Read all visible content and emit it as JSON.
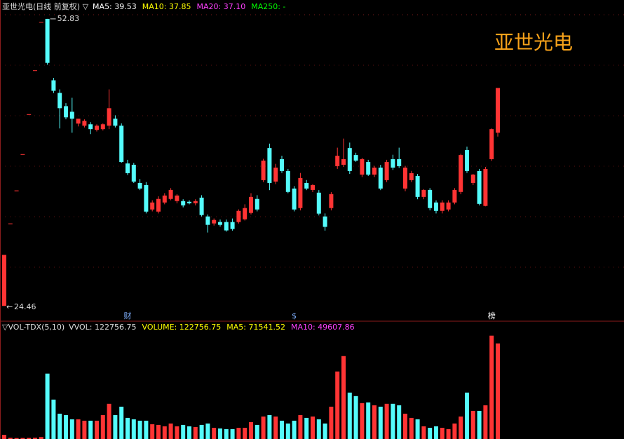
{
  "chart_data": [
    {
      "type": "candlestick",
      "title": "亚世光电(日线 前复权) ▽",
      "title_color": "#dddddd",
      "indicators": [
        {
          "text": "MA5: 39.53",
          "color": "#ffffff"
        },
        {
          "text": "MA10: 37.85",
          "color": "#ffff00"
        },
        {
          "text": "MA20: 37.10",
          "color": "#ff40ff"
        },
        {
          "text": "MA250: -",
          "color": "#00ff00"
        }
      ],
      "watermark": "亚世光电",
      "watermark_color": "#f7a21a",
      "high_label": 52.83,
      "low_label": 24.46,
      "ylim": [
        23.85,
        53.31
      ],
      "up_color": "#ff3434",
      "down_color": "#54fcfc",
      "events": [
        null,
        null,
        null,
        null,
        null,
        null,
        null,
        null,
        null,
        null,
        null,
        null,
        null,
        null,
        null,
        null,
        null,
        null,
        null,
        null,
        "财",
        null,
        null,
        null,
        null,
        null,
        null,
        null,
        null,
        null,
        null,
        null,
        null,
        null,
        null,
        null,
        null,
        null,
        null,
        null,
        null,
        null,
        null,
        null,
        null,
        null,
        null,
        "$",
        null,
        null,
        null,
        null,
        null,
        null,
        null,
        null,
        null,
        null,
        null,
        null,
        null,
        null,
        null,
        null,
        null,
        null,
        null,
        null,
        null,
        null,
        null,
        null,
        null,
        null,
        null,
        null,
        null,
        null,
        null,
        "榜",
        null
      ],
      "open": [
        24.46,
        32.61,
        35.87,
        39.46,
        43.41,
        47.75,
        52.53,
        52.83,
        46.76,
        45.51,
        44.2,
        43.65,
        42.48,
        42.27,
        42.41,
        41.86,
        41.93,
        42.27,
        42.96,
        42.27,
        38.54,
        38.41,
        36.61,
        36.4,
        33.99,
        33.78,
        34.68,
        35.03,
        34.82,
        34.82,
        34.75,
        34.61,
        35.16,
        33.3,
        32.61,
        32.75,
        32.75,
        32.75,
        32.75,
        33.02,
        33.65,
        35.03,
        36.89,
        40.06,
        36.75,
        38.96,
        37.79,
        36.06,
        34.13,
        36.61,
        35.92,
        35.65,
        33.3,
        34.13,
        38.27,
        38.41,
        40.06,
        39.37,
        37.44,
        38.68,
        37.44,
        38.13,
        36.89,
        38.96,
        38.96,
        36.06,
        36.89,
        37.3,
        35.23,
        35.92,
        34.68,
        33.85,
        33.99,
        34.68,
        35.72,
        39.86,
        36.61,
        37.79,
        34.34,
        38.96,
        41.58
      ],
      "high": [
        29.5,
        32.61,
        35.87,
        39.46,
        43.41,
        47.75,
        52.53,
        52.83,
        47.0,
        45.86,
        44.5,
        45.03,
        42.8,
        42.9,
        42.62,
        42.4,
        42.5,
        45.86,
        43.3,
        42.5,
        38.9,
        38.6,
        37.0,
        36.7,
        34.9,
        35.3,
        35.6,
        36.1,
        35.5,
        35.0,
        34.9,
        35.0,
        35.4,
        33.5,
        33.1,
        33.0,
        33.0,
        33.1,
        34.0,
        34.5,
        35.6,
        35.4,
        39.0,
        40.5,
        38.5,
        39.3,
        38.0,
        36.3,
        37.6,
        36.9,
        36.5,
        35.9,
        33.6,
        35.7,
        40.1,
        41.0,
        40.6,
        39.6,
        39.1,
        38.9,
        38.3,
        38.4,
        38.9,
        39.4,
        40.1,
        38.3,
        37.8,
        37.5,
        36.0,
        36.1,
        34.9,
        34.9,
        34.9,
        36.1,
        39.5,
        40.2,
        37.5,
        38.0,
        38.2,
        42.0,
        46.0
      ],
      "low": [
        24.46,
        32.61,
        35.87,
        39.46,
        43.41,
        47.75,
        52.53,
        48.3,
        45.5,
        42.0,
        42.9,
        41.58,
        42.2,
        42.1,
        41.44,
        41.7,
        41.8,
        41.93,
        42.1,
        38.61,
        37.4,
        36.6,
        35.9,
        33.6,
        33.8,
        33.6,
        34.5,
        34.9,
        34.6,
        34.2,
        34.5,
        34.4,
        33.3,
        31.71,
        32.4,
        32.3,
        31.8,
        31.9,
        32.6,
        32.9,
        33.5,
        33.8,
        36.7,
        35.9,
        36.5,
        37.6,
        35.6,
        33.8,
        33.9,
        35.9,
        35.7,
        33.4,
        31.9,
        33.9,
        38.0,
        38.2,
        37.5,
        38.7,
        37.2,
        37.3,
        37.2,
        35.9,
        36.7,
        37.9,
        38.1,
        35.8,
        36.7,
        35.0,
        35.0,
        33.9,
        33.6,
        33.6,
        33.8,
        34.5,
        35.5,
        37.6,
        36.4,
        34.4,
        34.3,
        38.8,
        41.2
      ],
      "close": [
        29.5,
        32.61,
        35.87,
        39.46,
        43.41,
        47.75,
        52.53,
        48.48,
        45.72,
        44.0,
        43.1,
        42.96,
        42.96,
        42.75,
        41.93,
        42.27,
        42.41,
        44.0,
        42.27,
        38.68,
        37.58,
        36.75,
        36.06,
        33.78,
        34.68,
        35.03,
        35.37,
        35.92,
        35.37,
        34.4,
        34.61,
        34.82,
        33.44,
        32.47,
        32.95,
        32.47,
        31.92,
        32.06,
        33.85,
        34.13,
        35.23,
        33.99,
        38.82,
        36.61,
        38.13,
        37.79,
        35.72,
        33.99,
        37.1,
        36.06,
        36.4,
        33.58,
        32.27,
        35.51,
        39.3,
        38.96,
        37.79,
        38.82,
        38.96,
        37.44,
        38.13,
        36.06,
        38.68,
        38.13,
        38.27,
        38.13,
        37.58,
        35.23,
        35.92,
        34.13,
        33.85,
        34.68,
        34.68,
        35.92,
        39.37,
        37.79,
        37.44,
        34.54,
        37.99,
        41.93,
        46.0
      ]
    },
    {
      "type": "bar",
      "title": "▽VOL-TDX(5,10)",
      "title_color": "#dddddd",
      "indicators": [
        {
          "text": "VVOL: 122756.75",
          "color": "#dddddd"
        },
        {
          "text": "VOLUME: 122756.75",
          "color": "#ffff00"
        },
        {
          "text": "MA5: 71541.52",
          "color": "#ffff00"
        },
        {
          "text": "MA10: 49607.86",
          "color": "#ff40ff"
        }
      ],
      "ylim": [
        0,
        136000
      ],
      "values": [
        5400,
        1500,
        1200,
        1300,
        1400,
        1600,
        2500,
        84000,
        50600,
        32500,
        30700,
        25300,
        25300,
        23500,
        23500,
        23500,
        30700,
        45200,
        30700,
        41500,
        27100,
        25300,
        23500,
        23500,
        19000,
        18100,
        16300,
        19900,
        16300,
        18100,
        16300,
        15400,
        18100,
        19900,
        14400,
        13500,
        12600,
        12600,
        14400,
        14400,
        21700,
        18100,
        28900,
        30700,
        28900,
        23500,
        19900,
        23500,
        30700,
        27100,
        28900,
        25300,
        19900,
        41500,
        86700,
        106500,
        59600,
        55100,
        46100,
        47000,
        43300,
        41500,
        45200,
        45200,
        43300,
        32500,
        27100,
        25300,
        16300,
        14400,
        16300,
        14400,
        12600,
        19900,
        28900,
        59600,
        36100,
        36100,
        43300,
        132700,
        122756.75
      ]
    }
  ]
}
